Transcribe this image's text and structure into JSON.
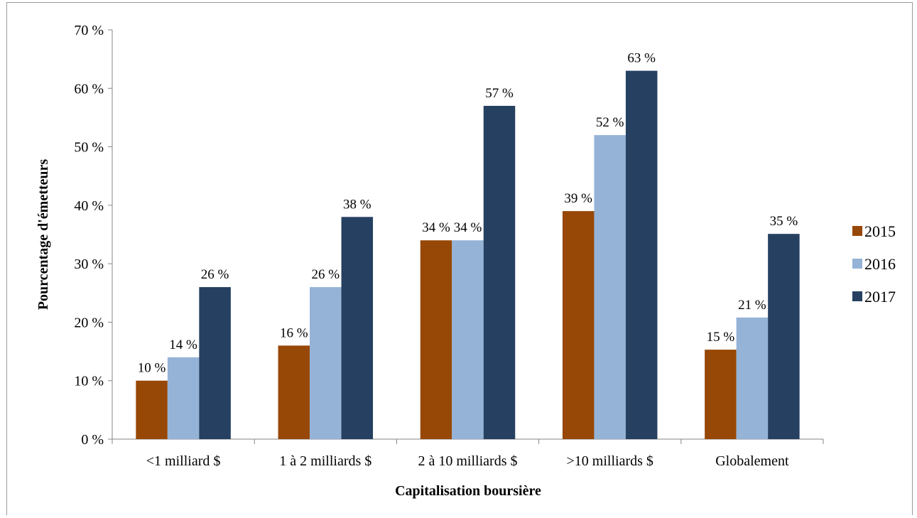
{
  "chart_data": {
    "type": "bar",
    "title": "",
    "xlabel": "Capitalisation boursière",
    "ylabel": "Pourcentage d'émetteurs",
    "ylim": [
      0,
      70
    ],
    "yticks": [
      0,
      10,
      20,
      30,
      40,
      50,
      60,
      70
    ],
    "ytick_labels": [
      "0 %",
      "10 %",
      "20 %",
      "30 %",
      "40 %",
      "50 %",
      "60 %",
      "70 %"
    ],
    "categories": [
      "<1 milliard $",
      "1 à 2 milliards $",
      "2 à 10 milliards $",
      ">10 milliards $",
      "Globalement"
    ],
    "series": [
      {
        "name": "2015",
        "color": "#974706",
        "values": [
          10,
          16,
          34,
          39,
          15.3
        ],
        "labels": [
          "10 %",
          "16 %",
          "34 %",
          "39 %",
          "15 %"
        ]
      },
      {
        "name": "2016",
        "color": "#95b3d7",
        "values": [
          14,
          26,
          34,
          52,
          20.8
        ],
        "labels": [
          "14 %",
          "26 %",
          "34 %",
          "52 %",
          "21 %"
        ]
      },
      {
        "name": "2017",
        "color": "#254061",
        "values": [
          26,
          38,
          57,
          63,
          35.1
        ],
        "labels": [
          "26 %",
          "38 %",
          "57 %",
          "63 %",
          "35 %"
        ]
      }
    ],
    "grid": false,
    "legend_position": "right"
  }
}
